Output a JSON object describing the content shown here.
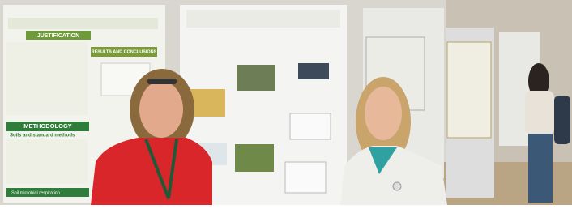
{
  "poster_left": {
    "headings": [
      "JUSTIFICATION",
      "RESULTS AND CONCLUSIONS",
      "METHODOLOGY"
    ],
    "subheadings": [
      "Soils and standard methods",
      "Soil microbial respiration"
    ]
  }
}
